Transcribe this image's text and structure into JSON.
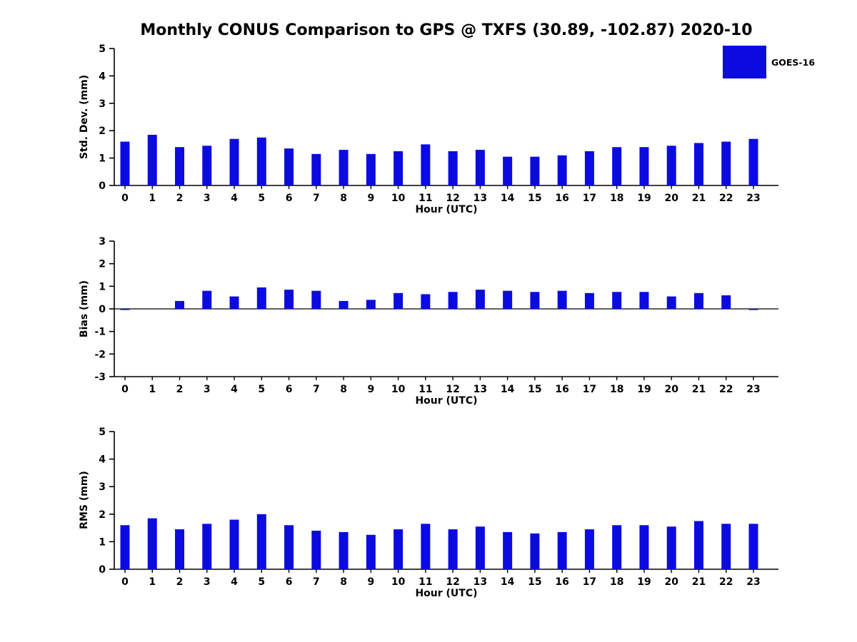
{
  "title": "Monthly CONUS Comparison to GPS @ TXFS (30.89, -102.87) 2020-10",
  "legend": {
    "label": "GOES-16",
    "color": "#0b0be0"
  },
  "chart_data": [
    {
      "type": "bar",
      "subplot": "std_dev",
      "ylabel": "Std. Dev. (mm)",
      "xlabel": "Hour (UTC)",
      "ylim": [
        0,
        5
      ],
      "yticks": [
        0,
        1,
        2,
        3,
        4,
        5
      ],
      "grid": false,
      "legend_position": "top-right",
      "categories": [
        0,
        1,
        2,
        3,
        4,
        5,
        6,
        7,
        8,
        9,
        10,
        11,
        12,
        13,
        14,
        15,
        16,
        17,
        18,
        19,
        20,
        21,
        22,
        23
      ],
      "values": [
        1.6,
        1.85,
        1.4,
        1.45,
        1.7,
        1.75,
        1.35,
        1.15,
        1.3,
        1.15,
        1.25,
        1.5,
        1.25,
        1.3,
        1.05,
        1.05,
        1.1,
        1.25,
        1.4,
        1.4,
        1.45,
        1.55,
        1.6,
        1.7
      ]
    },
    {
      "type": "bar",
      "subplot": "bias",
      "ylabel": "Bias (mm)",
      "xlabel": "Hour (UTC)",
      "ylim": [
        -3,
        3
      ],
      "yticks": [
        -3,
        -2,
        -1,
        0,
        1,
        2,
        3
      ],
      "grid": false,
      "categories": [
        0,
        1,
        2,
        3,
        4,
        5,
        6,
        7,
        8,
        9,
        10,
        11,
        12,
        13,
        14,
        15,
        16,
        17,
        18,
        19,
        20,
        21,
        22,
        23
      ],
      "values": [
        -0.05,
        0,
        0.35,
        0.8,
        0.55,
        0.95,
        0.85,
        0.8,
        0.35,
        0.4,
        0.7,
        0.65,
        0.75,
        0.85,
        0.8,
        0.75,
        0.8,
        0.7,
        0.75,
        0.75,
        0.55,
        0.7,
        0.6,
        -0.05
      ]
    },
    {
      "type": "bar",
      "subplot": "rms",
      "ylabel": "RMS (mm)",
      "xlabel": "Hour (UTC)",
      "ylim": [
        0,
        5
      ],
      "yticks": [
        0,
        1,
        2,
        3,
        4,
        5
      ],
      "grid": false,
      "categories": [
        0,
        1,
        2,
        3,
        4,
        5,
        6,
        7,
        8,
        9,
        10,
        11,
        12,
        13,
        14,
        15,
        16,
        17,
        18,
        19,
        20,
        21,
        22,
        23
      ],
      "values": [
        1.6,
        1.85,
        1.45,
        1.65,
        1.8,
        2.0,
        1.6,
        1.4,
        1.35,
        1.25,
        1.45,
        1.65,
        1.45,
        1.55,
        1.35,
        1.3,
        1.35,
        1.45,
        1.6,
        1.6,
        1.55,
        1.75,
        1.65,
        1.65
      ]
    }
  ]
}
